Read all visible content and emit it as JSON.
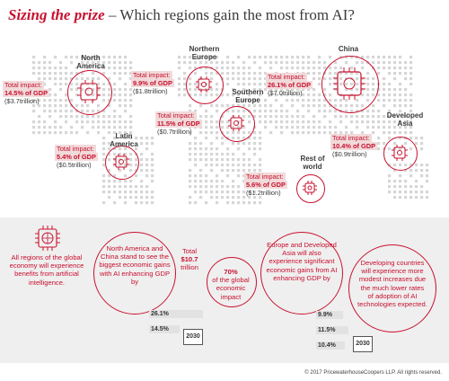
{
  "title": {
    "lead": "Sizing the prize",
    "rest": " – Which regions gain the most from AI?"
  },
  "regions": [
    {
      "key": "north_america",
      "name": "North America",
      "impact_label": "Total impact:",
      "gdp": "14.5% of GDP",
      "trillion": "($3.7trillion)"
    },
    {
      "key": "northern_europe",
      "name": "Northern Europe",
      "impact_label": "Total impact:",
      "gdp": "9.9% of GDP",
      "trillion": "($1.8trillion)"
    },
    {
      "key": "southern_europe",
      "name": "Southern Europe",
      "impact_label": "Total impact:",
      "gdp": "11.5% of GDP",
      "trillion": "($0.7trillion)"
    },
    {
      "key": "china",
      "name": "China",
      "impact_label": "Total impact:",
      "gdp": "26.1% of GDP",
      "trillion": "($7.0trillion)"
    },
    {
      "key": "latin_america",
      "name": "Latin America",
      "impact_label": "Total impact:",
      "gdp": "5.4% of GDP",
      "trillion": "($0.5trillion)"
    },
    {
      "key": "rest_of_world",
      "name": "Rest of world",
      "impact_label": "Total impact:",
      "gdp": "5.6% of GDP",
      "trillion": "($1.2trillion)"
    },
    {
      "key": "developed_asia",
      "name": "Developed Asia",
      "impact_label": "Total impact:",
      "gdp": "10.4% of GDP",
      "trillion": "($0.9trillion)"
    }
  ],
  "bottom": {
    "all_regions": "All regions of the global economy will experience benefits from artificial intelligence.",
    "na_china": "North America and China stand to see the biggest economic gains with AI enhancing GDP by",
    "total_label": "Total",
    "total_value": "$10.7",
    "total_unit": "trillion",
    "share_value": "70%",
    "share_text": "of the global economic impact",
    "eu_asia": "Europe and Developed Asia will also experience significant economic gains from AI enhancing GDP by",
    "developing": "Developing countries will experience more modest increases due the much lower rates of adoption of AI technologies expected.",
    "bars_left": [
      {
        "label": "26.1%",
        "value": 26.1
      },
      {
        "label": "14.5%",
        "value": 14.5
      }
    ],
    "bars_right": [
      {
        "label": "9.9%",
        "value": 9.9
      },
      {
        "label": "11.5%",
        "value": 11.5
      },
      {
        "label": "10.4%",
        "value": 10.4
      }
    ],
    "year": "2030"
  },
  "footer": "© 2017 PricewaterhouseCoopers LLP. All rights reserved.",
  "colors": {
    "accent": "#c8102e",
    "highlight": "#f1dada",
    "band": "#efefef",
    "map_dots": "#d6d6d6"
  }
}
